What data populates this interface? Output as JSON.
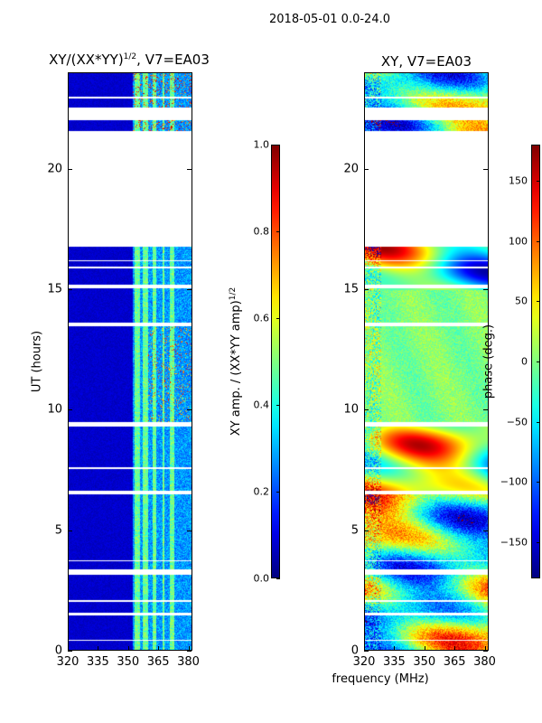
{
  "chart_data": {
    "suptitle": "2018-05-01 0.0-24.0",
    "xlabel_shared": "frequency (MHz)",
    "panels": [
      {
        "type": "heatmap",
        "title_base": "XY/(XX*YY)",
        "title_exp": "1/2",
        "title_suffix": ", V7=EA03",
        "ylabel": "UT (hours)",
        "xlim": [
          320,
          382
        ],
        "ylim": [
          0,
          24
        ],
        "xticks": [
          "320",
          "335",
          "350",
          "365",
          "380"
        ],
        "xtick_values": [
          320,
          335,
          350,
          365,
          380
        ],
        "yticks": [
          "0",
          "5",
          "10",
          "15",
          "20"
        ],
        "ytick_values": [
          0,
          5,
          10,
          15,
          20
        ],
        "colorbar": {
          "label_base": "XY amp. / (XX*YY amp)",
          "label_exp": "1/2",
          "range": [
            0.0,
            1.0
          ],
          "ticks": [
            "0.0",
            "0.2",
            "0.4",
            "0.6",
            "0.8",
            "1.0"
          ],
          "tick_values": [
            0.0,
            0.2,
            0.4,
            0.6,
            0.8,
            1.0
          ]
        }
      },
      {
        "type": "heatmap",
        "title_base": "XY, V7=EA03",
        "title_exp": "",
        "title_suffix": "",
        "ylabel": "",
        "xlim": [
          320,
          382
        ],
        "ylim": [
          0,
          24
        ],
        "xticks": [
          "320",
          "335",
          "350",
          "365",
          "380"
        ],
        "xtick_values": [
          320,
          335,
          350,
          365,
          380
        ],
        "yticks": [
          "0",
          "5",
          "10",
          "15",
          "20"
        ],
        "ytick_values": [
          0,
          5,
          10,
          15,
          20
        ],
        "colorbar": {
          "label_base": "phase (deg.)",
          "label_exp": "",
          "range": [
            -180,
            180
          ],
          "ticks": [
            "−150",
            "−100",
            "−50",
            "0",
            "50",
            "100",
            "150"
          ],
          "tick_values": [
            -150,
            -100,
            -50,
            0,
            50,
            100,
            150
          ]
        }
      }
    ],
    "flagged_ut_ranges": [
      [
        16.8,
        21.6
      ],
      [
        22.05,
        22.6
      ],
      [
        0.38,
        0.45
      ],
      [
        1.45,
        1.55
      ],
      [
        2.0,
        2.1
      ],
      [
        3.15,
        3.35
      ],
      [
        3.7,
        3.75
      ],
      [
        6.5,
        6.65
      ],
      [
        7.55,
        7.6
      ],
      [
        9.3,
        9.5
      ],
      [
        13.5,
        13.65
      ],
      [
        15.05,
        15.2
      ],
      [
        15.9,
        15.95
      ],
      [
        16.2,
        16.25
      ],
      [
        22.95,
        23.05
      ]
    ],
    "amp_bright_channels_mhz": [
      [
        353,
        356
      ],
      [
        357,
        360
      ],
      [
        362,
        364
      ],
      [
        367,
        368
      ],
      [
        371,
        373
      ]
    ]
  }
}
